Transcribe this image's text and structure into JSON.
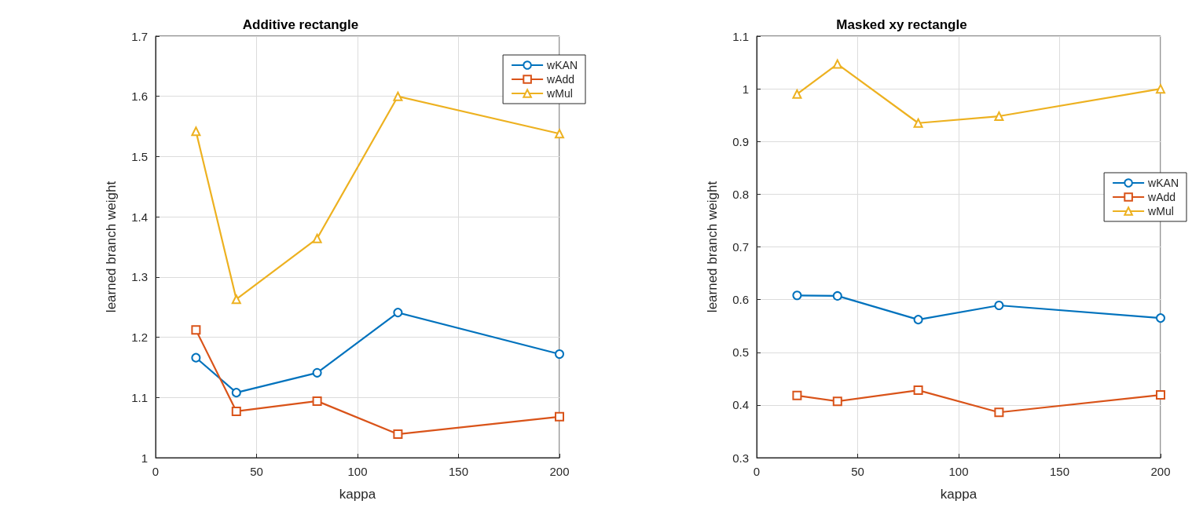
{
  "chart_data": [
    {
      "type": "line",
      "title": "Additive rectangle",
      "xlabel": "kappa",
      "ylabel": "learned branch weight",
      "x": [
        20,
        40,
        80,
        120,
        200
      ],
      "xlim": [
        0,
        200
      ],
      "xticks": [
        0,
        50,
        100,
        150,
        200
      ],
      "ylim": [
        1,
        1.7
      ],
      "yticks": [
        1,
        1.1,
        1.2,
        1.3,
        1.4,
        1.5,
        1.6,
        1.7
      ],
      "grid": true,
      "legend": "top right",
      "line_style": "solid",
      "series": [
        {
          "name": "wKAN",
          "color": "#0072bd",
          "marker": "circle",
          "values": [
            1.166,
            1.108,
            1.141,
            1.241,
            1.172
          ]
        },
        {
          "name": "wAdd",
          "color": "#d95319",
          "marker": "square",
          "values": [
            1.212,
            1.077,
            1.094,
            1.039,
            1.068
          ]
        },
        {
          "name": "wMul",
          "color": "#edb120",
          "marker": "triangle",
          "values": [
            1.542,
            1.263,
            1.364,
            1.6,
            1.538
          ]
        }
      ]
    },
    {
      "type": "line",
      "title": "Masked xy rectangle",
      "xlabel": "kappa",
      "ylabel": "learned branch weight",
      "x": [
        20,
        40,
        80,
        120,
        200
      ],
      "xlim": [
        0,
        200
      ],
      "xticks": [
        0,
        50,
        100,
        150,
        200
      ],
      "ylim": [
        0.3,
        1.1
      ],
      "yticks": [
        0.3,
        0.4,
        0.5,
        0.6,
        0.7,
        0.8,
        0.9,
        1,
        1.1
      ],
      "grid": true,
      "legend": "right",
      "line_style": "solid",
      "series": [
        {
          "name": "wKAN",
          "color": "#0072bd",
          "marker": "circle",
          "values": [
            0.608,
            0.607,
            0.562,
            0.589,
            0.565
          ]
        },
        {
          "name": "wAdd",
          "color": "#d95319",
          "marker": "square",
          "values": [
            0.418,
            0.407,
            0.428,
            0.386,
            0.419
          ]
        },
        {
          "name": "wMul",
          "color": "#edb120",
          "marker": "triangle",
          "values": [
            0.99,
            1.047,
            0.935,
            0.948,
            1.0
          ]
        }
      ]
    }
  ]
}
